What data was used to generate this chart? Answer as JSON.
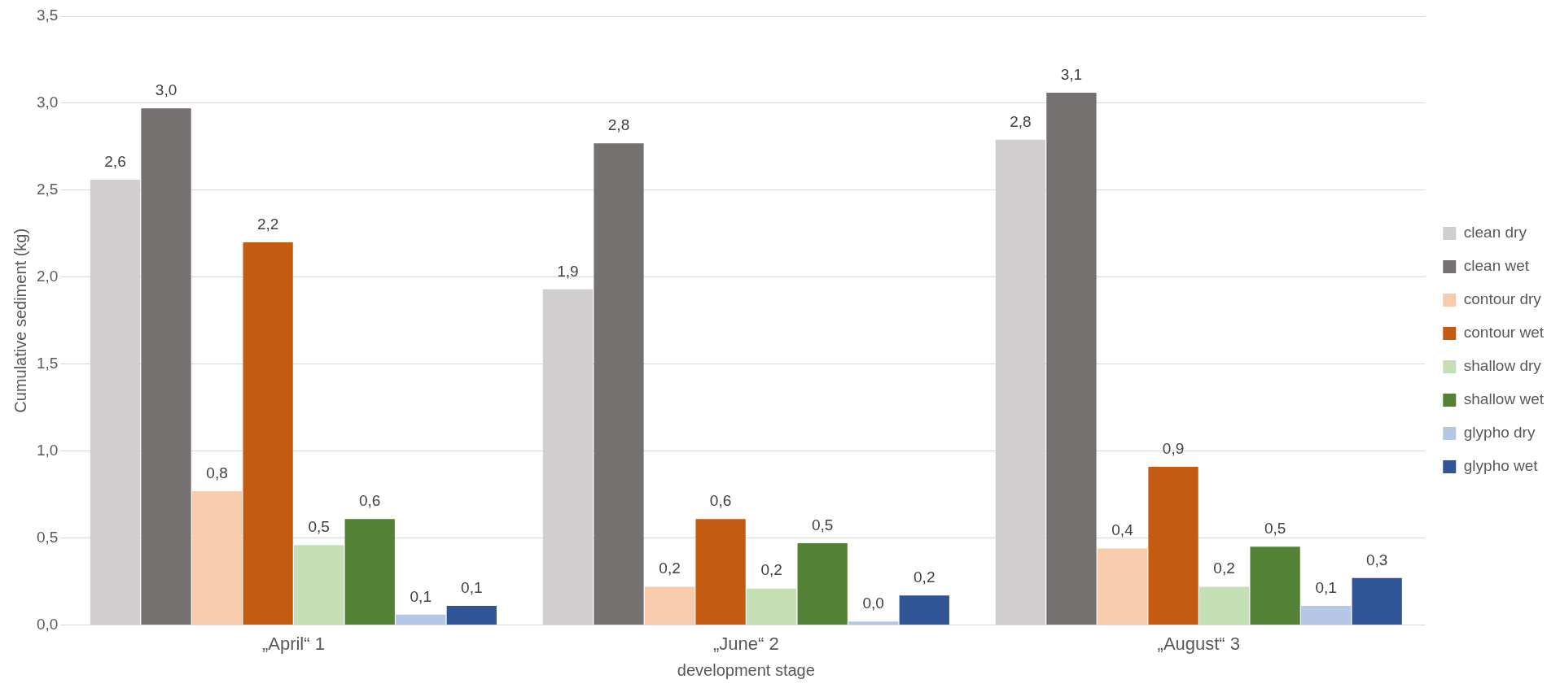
{
  "chart_data": {
    "type": "bar",
    "xlabel": "development stage",
    "ylabel": "Cumulative sediment (kg)",
    "categories": [
      "„April“ 1",
      "„June“ 2",
      "„August“ 3"
    ],
    "series": [
      {
        "name": "clean dry",
        "color": "#d0cece",
        "values": [
          2.56,
          1.93,
          2.79
        ],
        "value_labels": [
          "2,6",
          "1,9",
          "2,8"
        ]
      },
      {
        "name": "clean wet",
        "color": "#767171",
        "values": [
          2.97,
          2.77,
          3.06
        ],
        "value_labels": [
          "3,0",
          "2,8",
          "3,1"
        ]
      },
      {
        "name": "contour dry",
        "color": "#f8cbad",
        "values": [
          0.77,
          0.22,
          0.44
        ],
        "value_labels": [
          "0,8",
          "0,2",
          "0,4"
        ]
      },
      {
        "name": "contour wet",
        "color": "#c55a11",
        "values": [
          2.2,
          0.61,
          0.91
        ],
        "value_labels": [
          "2,2",
          "0,6",
          "0,9"
        ]
      },
      {
        "name": "shallow dry",
        "color": "#c5e0b4",
        "values": [
          0.46,
          0.21,
          0.22
        ],
        "value_labels": [
          "0,5",
          "0,2",
          "0,2"
        ]
      },
      {
        "name": "shallow wet",
        "color": "#538135",
        "values": [
          0.61,
          0.47,
          0.45
        ],
        "value_labels": [
          "0,6",
          "0,5",
          "0,5"
        ]
      },
      {
        "name": "glypho dry",
        "color": "#b4c7e7",
        "values": [
          0.06,
          0.02,
          0.11
        ],
        "value_labels": [
          "0,1",
          "0,0",
          "0,1"
        ]
      },
      {
        "name": "glypho wet",
        "color": "#2f5597",
        "values": [
          0.11,
          0.17,
          0.27
        ],
        "value_labels": [
          "0,1",
          "0,2",
          "0,3"
        ]
      }
    ],
    "ylim": [
      0,
      3.5
    ],
    "yticks": [
      {
        "value": 0,
        "label": "0,0"
      },
      {
        "value": 0.5,
        "label": "0,5"
      },
      {
        "value": 1,
        "label": "1,0"
      },
      {
        "value": 1.5,
        "label": "1,5"
      },
      {
        "value": 2,
        "label": "2,0"
      },
      {
        "value": 2.5,
        "label": "2,5"
      },
      {
        "value": 3,
        "label": "3,0"
      },
      {
        "value": 3.5,
        "label": "3,5"
      }
    ],
    "grid": "y",
    "legend": "right"
  }
}
